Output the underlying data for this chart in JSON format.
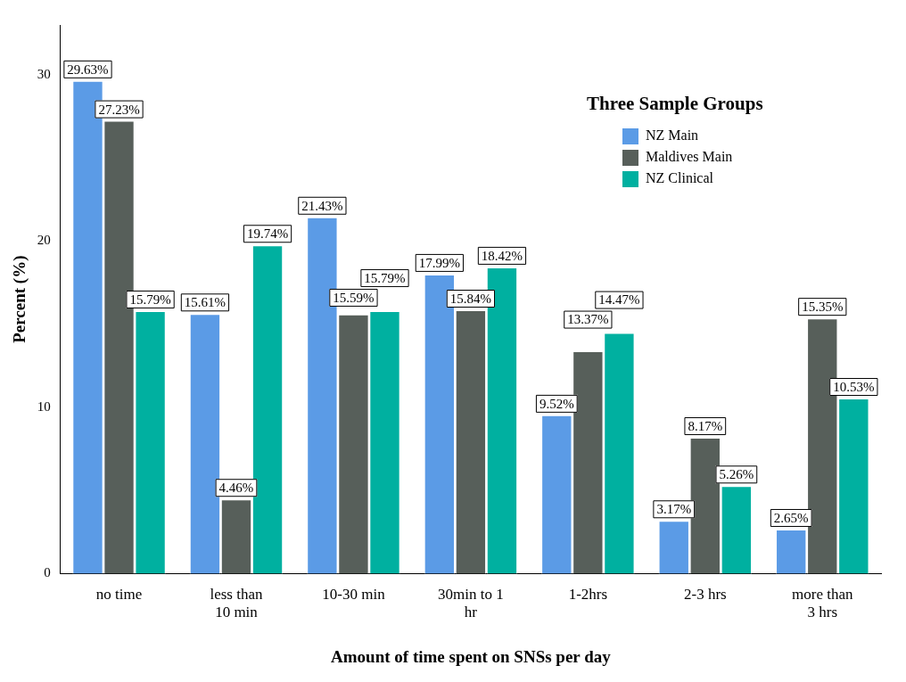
{
  "chart_data": {
    "type": "bar",
    "xlabel": "Amount of time spent on SNSs per day",
    "ylabel": "Percent (%)",
    "legend_title": "Three Sample Groups",
    "legend": "top right",
    "grid": false,
    "categories": [
      "no time",
      "less than 10 min",
      "10-30 min",
      "30min to 1 hr",
      "1-2hrs",
      "2-3 hrs",
      "more than 3 hrs"
    ],
    "ylim": [
      0,
      33
    ],
    "yticks": [
      0,
      10,
      20,
      30
    ],
    "series": [
      {
        "name": "NZ Main",
        "color": "#5b9be6",
        "values": [
          29.63,
          15.61,
          21.43,
          17.99,
          9.52,
          3.17,
          2.65
        ],
        "value_labels": [
          "29.63%",
          "15.61%",
          "21.43%",
          "17.99%",
          "9.52%",
          "3.17%",
          "2.65%"
        ]
      },
      {
        "name": "Maldives Main",
        "color": "#575f5a",
        "values": [
          27.23,
          4.46,
          15.59,
          15.84,
          13.37,
          8.17,
          15.35
        ],
        "value_labels": [
          "27.23%",
          "4.46%",
          "15.59%",
          "15.84%",
          "13.37%",
          "8.17%",
          "15.35%"
        ]
      },
      {
        "name": "NZ Clinical",
        "color": "#00b0a0",
        "values": [
          15.79,
          19.74,
          15.79,
          18.42,
          14.47,
          5.26,
          10.53
        ],
        "value_labels": [
          "15.79%",
          "19.74%",
          "15.79%",
          "18.42%",
          "14.47%",
          "5.26%",
          "10.53%"
        ]
      }
    ]
  }
}
